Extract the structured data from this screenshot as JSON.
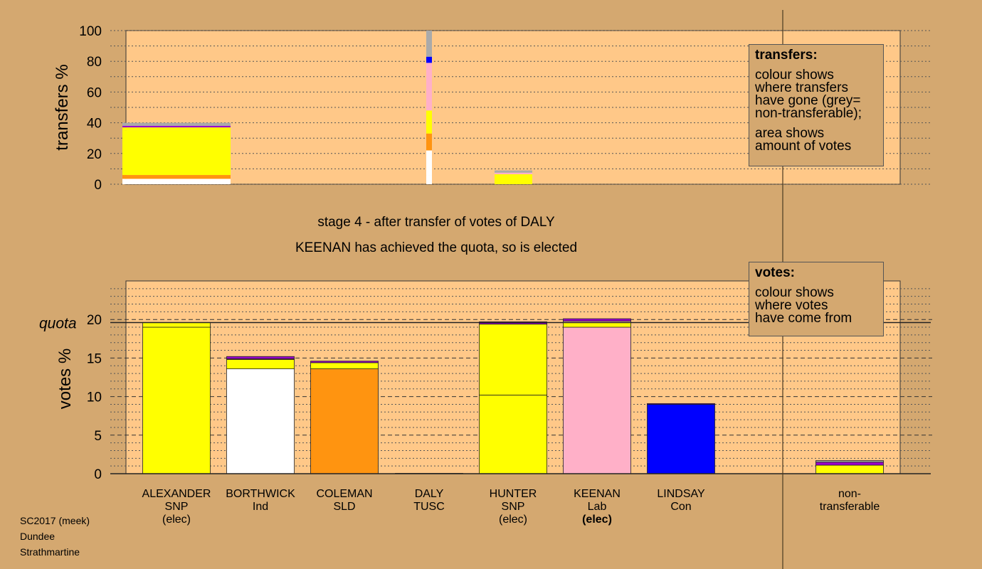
{
  "chart_data": {
    "type": "bar",
    "stage_title": "stage 4 - after transfer of votes of DALY",
    "stage_subtitle": "KEENAN has achieved the quota, so is elected",
    "transfers_chart": {
      "ylabel": "transfers %",
      "ylim": [
        0,
        100
      ],
      "yticks": [
        "0",
        "20",
        "40",
        "60",
        "80",
        "100"
      ],
      "colors": {
        "Ind": "#ffffff",
        "SLD": "#ff9410",
        "SNP": "#ffff00",
        "Lab": "#ffb0c8",
        "Con": "#0000ff",
        "TUSC": "#9a00cc",
        "nontransferable": "#aaaaaa"
      },
      "transfer_column": {
        "x": "DALY",
        "segments": [
          {
            "party": "Ind",
            "from": 0,
            "to": 6
          },
          {
            "party": "Ind",
            "from": 6,
            "to": 22
          },
          {
            "party": "SLD",
            "from": 22,
            "to": 33
          },
          {
            "party": "SNP",
            "from": 33,
            "to": 48
          },
          {
            "party": "Lab",
            "from": 48,
            "to": 79
          },
          {
            "party": "Con",
            "from": 79,
            "to": 83
          },
          {
            "party": "nontransferable",
            "from": 83,
            "to": 100
          }
        ]
      },
      "bars": [
        {
          "candidate": "ALEXANDER",
          "segments": [
            {
              "party": "Ind",
              "to": 3.5
            },
            {
              "party": "SLD",
              "to": 6
            },
            {
              "party": "SNP",
              "to": 35
            },
            {
              "party": "SNP",
              "to": 37
            },
            {
              "party": "TUSC",
              "to": 38
            },
            {
              "party": "nontransferable",
              "to": 40
            }
          ]
        },
        {
          "candidate": "HUNTER",
          "segments": [
            {
              "party": "SNP",
              "to": 6.5
            },
            {
              "party": "Lab",
              "to": 7.5
            },
            {
              "party": "nontransferable",
              "to": 9
            }
          ]
        }
      ],
      "legend": {
        "title": "transfers:",
        "lines": [
          "colour shows",
          "where transfers",
          "have gone (grey=",
          "non-transferable);"
        ],
        "lines2": [
          "area shows",
          "amount of votes"
        ]
      }
    },
    "votes_chart": {
      "ylabel": "votes %",
      "quota_label": "quota",
      "quota": 19.6,
      "ylim": [
        0,
        25
      ],
      "yticks": [
        "0",
        "5",
        "10",
        "15",
        "20"
      ],
      "candidates": [
        {
          "name": "ALEXANDER",
          "party": "SNP",
          "status": "(elec)",
          "status_bold": false,
          "segments": [
            {
              "party": "SNP",
              "value": 19.0
            },
            {
              "party": "SNP",
              "value": 0.6
            }
          ]
        },
        {
          "name": "BORTHWICK",
          "party": "Ind",
          "status": "",
          "status_bold": false,
          "segments": [
            {
              "party": "Ind",
              "value": 13.6
            },
            {
              "party": "SNP",
              "value": 1.2
            },
            {
              "party": "SLD",
              "value": 0.1
            },
            {
              "party": "TUSC",
              "value": 0.3
            }
          ]
        },
        {
          "name": "COLEMAN",
          "party": "SLD",
          "status": "",
          "status_bold": false,
          "segments": [
            {
              "party": "SLD",
              "value": 13.6
            },
            {
              "party": "SNP",
              "value": 0.8
            },
            {
              "party": "TUSC",
              "value": 0.2
            }
          ]
        },
        {
          "name": "DALY",
          "party": "TUSC",
          "status": "",
          "status_bold": false,
          "segments": [
            {
              "party": "TUSC",
              "value": 0.05
            }
          ]
        },
        {
          "name": "HUNTER",
          "party": "SNP",
          "status": "(elec)",
          "status_bold": false,
          "segments": [
            {
              "party": "SNP",
              "value": 10.2
            },
            {
              "party": "SNP",
              "value": 9.2
            },
            {
              "party": "TUSC",
              "value": 0.3
            }
          ]
        },
        {
          "name": "KEENAN",
          "party": "Lab",
          "status": "(elec)",
          "status_bold": true,
          "segments": [
            {
              "party": "Lab",
              "value": 19.0
            },
            {
              "party": "SNP",
              "value": 0.6
            },
            {
              "party": "Lab",
              "value": 0.2
            },
            {
              "party": "TUSC",
              "value": 0.3
            }
          ]
        },
        {
          "name": "LINDSAY",
          "party": "Con",
          "status": "",
          "status_bold": false,
          "segments": [
            {
              "party": "Con",
              "value": 9.0
            },
            {
              "party": "TUSC",
              "value": 0.1
            }
          ]
        },
        {
          "name": "non-",
          "party": "transferable",
          "status": "",
          "status_bold": false,
          "nontransferable": true,
          "segments": [
            {
              "party": "SNP",
              "value": 1.1
            },
            {
              "party": "TUSC",
              "value": 0.4
            },
            {
              "party": "nontransferable",
              "value": 0.2
            }
          ]
        }
      ],
      "legend": {
        "title": "votes:",
        "lines": [
          "colour shows",
          "where votes",
          "have come from"
        ]
      }
    }
  },
  "credit": {
    "line1": "SC2017 (meek)",
    "line2": "Dundee",
    "line3": "Strathmartine"
  }
}
